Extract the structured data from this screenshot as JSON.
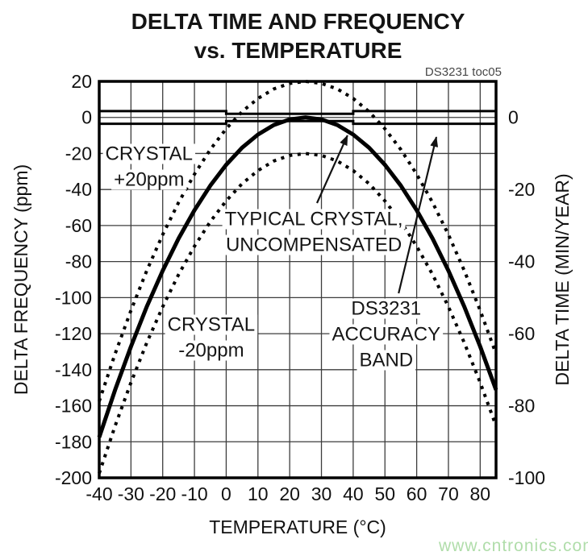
{
  "title": {
    "line1": "DELTA TIME AND FREQUENCY",
    "line2": "vs. TEMPERATURE"
  },
  "figure_code": "DS3231 toc05",
  "watermark": {
    "text": "www.cntronics.com",
    "color": "#b0ddaa"
  },
  "chart_data": {
    "type": "line",
    "title": "DELTA TIME AND FREQUENCY vs. TEMPERATURE",
    "xlabel": "TEMPERATURE (°C)",
    "ylabel_left": "DELTA FREQUENCY (ppm)",
    "ylabel_right": "DELTA TIME (MIN/YEAR)",
    "x_range": [
      -40,
      85
    ],
    "y_left_range": [
      20,
      -200
    ],
    "y_right_range": [
      10,
      -100
    ],
    "y_right_per_left": 0.5,
    "grid": true,
    "x_ticks": [
      -40,
      -30,
      -20,
      -10,
      0,
      10,
      20,
      30,
      40,
      50,
      60,
      70,
      80
    ],
    "y_ticks_left": [
      20,
      0,
      -20,
      -40,
      -60,
      -80,
      -100,
      -120,
      -140,
      -160,
      -180,
      -200
    ],
    "y_ticks_right": [
      0,
      -20,
      -40,
      -60,
      -80,
      -100
    ],
    "x_sample": [
      -40,
      -35,
      -30,
      -25,
      -20,
      -15,
      -10,
      -5,
      0,
      5,
      10,
      15,
      20,
      25,
      30,
      35,
      40,
      45,
      50,
      55,
      60,
      65,
      70,
      75,
      80,
      85
    ],
    "series": [
      {
        "id": "crystal-plus-20ppm",
        "name": "CRYSTAL +20ppm",
        "style": "dotted",
        "values": [
          -157.5,
          -131.2,
          -107.1,
          -85.0,
          -65.1,
          -47.2,
          -31.5,
          -17.8,
          -6.3,
          3.2,
          10.5,
          15.8,
          18.9,
          20,
          18.9,
          15.8,
          10.5,
          3.2,
          -6.3,
          -17.8,
          -31.5,
          -47.2,
          -65.1,
          -85.0,
          -107.1,
          -131.2
        ]
      },
      {
        "id": "typical-crystal-uncompensated",
        "name": "TYPICAL CRYSTAL, UNCOMPENSATED",
        "style": "solid",
        "values": [
          -177.5,
          -151.2,
          -127.1,
          -105.0,
          -85.1,
          -67.2,
          -51.5,
          -37.8,
          -26.3,
          -16.8,
          -9.5,
          -4.2,
          -1.1,
          0,
          -1.1,
          -4.2,
          -9.5,
          -16.8,
          -26.3,
          -37.8,
          -51.5,
          -67.2,
          -85.1,
          -105.0,
          -127.1,
          -151.2
        ]
      },
      {
        "id": "crystal-minus-20ppm",
        "name": "CRYSTAL -20ppm",
        "style": "dotted",
        "values": [
          -197.5,
          -171.2,
          -147.1,
          -125.0,
          -105.1,
          -87.2,
          -71.5,
          -57.8,
          -46.3,
          -36.8,
          -29.5,
          -24.2,
          -21.1,
          -20,
          -21.1,
          -24.2,
          -29.5,
          -36.8,
          -46.3,
          -57.8,
          -71.5,
          -87.2,
          -105.1,
          -125.0,
          -147.1,
          -171.2
        ]
      }
    ],
    "accuracy_band": {
      "name": "DS3231 ACCURACY BAND",
      "segments": [
        {
          "t_start": -40,
          "t_end": 0,
          "half_width_ppm": 3.5
        },
        {
          "t_start": 0,
          "t_end": 40,
          "half_width_ppm": 2.0
        },
        {
          "t_start": 40,
          "t_end": 85,
          "half_width_ppm": 3.5
        }
      ]
    },
    "annotations": [
      {
        "t": -24.3,
        "ppm": -27.4,
        "lines": [
          "CRYSTAL",
          "+20ppm"
        ]
      },
      {
        "t": 27.6,
        "ppm": -63.6,
        "lines": [
          "TYPICAL CRYSTAL,",
          "UNCOMPENSATED"
        ]
      },
      {
        "t": -4.7,
        "ppm": -122.2,
        "lines": [
          "CRYSTAL",
          "-20ppm"
        ]
      },
      {
        "t": 50.4,
        "ppm": -120.4,
        "lines": [
          "DS3231",
          "ACCURACY",
          "BAND"
        ]
      }
    ],
    "arrows": [
      {
        "from_t": 28.6,
        "from_ppm": -47.5,
        "to_t": 38.2,
        "to_ppm": -10.0
      },
      {
        "from_t": 54.3,
        "from_ppm": -97.6,
        "to_t": 66.2,
        "to_ppm": -10.9
      }
    ]
  }
}
